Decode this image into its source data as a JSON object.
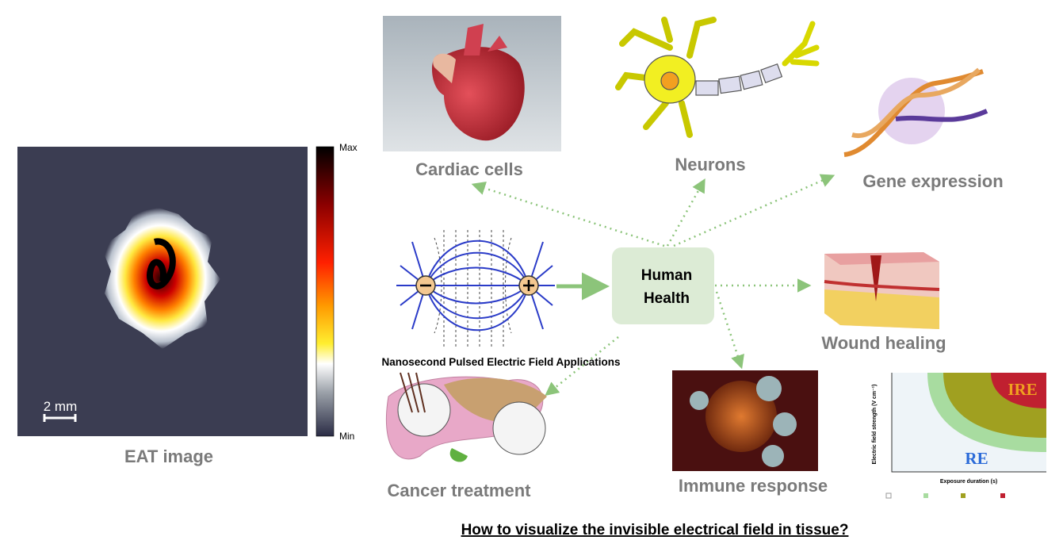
{
  "eat_panel": {
    "colorbar_max": "Max",
    "colorbar_min": "Min",
    "scale_bar": "2 mm",
    "caption": "EAT image"
  },
  "hub": {
    "label_lines": [
      "Human",
      "Health"
    ]
  },
  "applications": [
    {
      "label": "Cardiac cells"
    },
    {
      "label": "Neurons"
    },
    {
      "label": "Gene expression"
    },
    {
      "label": "Wound healing"
    },
    {
      "label": "Immune response"
    },
    {
      "label": "Cancer treatment"
    }
  ],
  "npef_caption": "Nanosecond Pulsed Electric Field Applications",
  "inset_chart": {
    "region_labels": [
      "IRE",
      "RE"
    ],
    "y_label": "Electric field strength (V cm⁻¹)",
    "x_label": "Exposure duration (s)"
  },
  "question": "How to visualize the invisible electrical field in tissue?"
}
